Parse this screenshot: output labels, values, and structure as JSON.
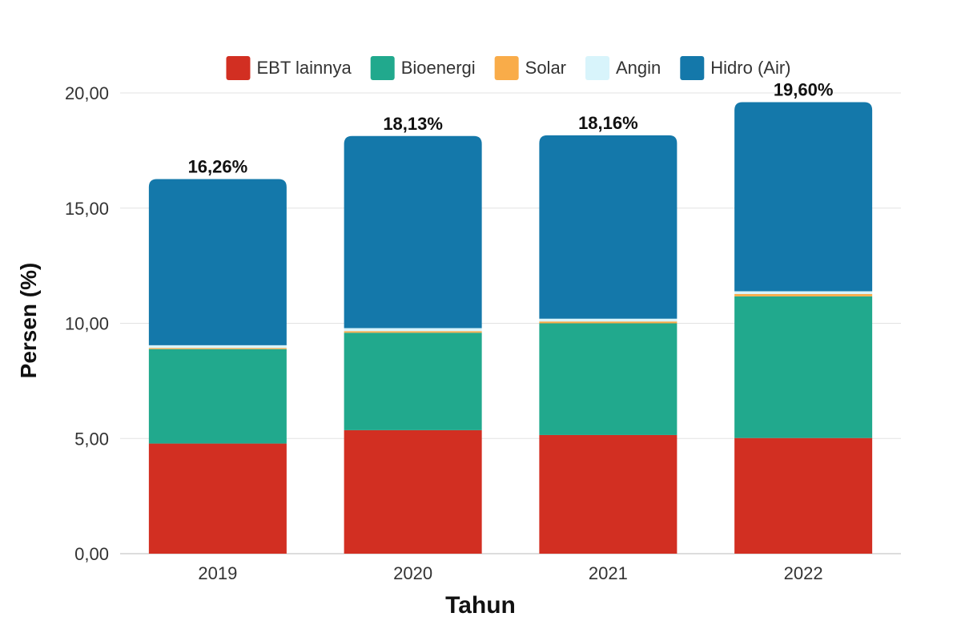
{
  "chart_data": {
    "type": "bar",
    "stacked": true,
    "categories": [
      "2019",
      "2020",
      "2021",
      "2022"
    ],
    "series": [
      {
        "name": "EBT lainnya",
        "color": "#d22f22",
        "values": [
          4.78,
          5.36,
          5.15,
          5.02
        ]
      },
      {
        "name": "Bioenergi",
        "color": "#21a98d",
        "values": [
          4.1,
          4.23,
          4.85,
          6.15
        ]
      },
      {
        "name": "Solar",
        "color": "#f9ac49",
        "values": [
          0.05,
          0.07,
          0.08,
          0.1
        ]
      },
      {
        "name": "Angin",
        "color": "#d8f4fb",
        "values": [
          0.12,
          0.13,
          0.12,
          0.12
        ]
      },
      {
        "name": "Hidro (Air)",
        "color": "#1478aa",
        "values": [
          7.21,
          8.34,
          7.96,
          8.21
        ]
      }
    ],
    "totals_labels": [
      "16,26%",
      "18,13%",
      "18,16%",
      "19,60%"
    ],
    "totals": [
      16.26,
      18.13,
      18.16,
      19.6
    ],
    "ylim": [
      0,
      20
    ],
    "yticks": [
      0,
      5,
      10,
      15,
      20
    ],
    "ytick_labels": [
      "0,00",
      "5,00",
      "10,00",
      "15,00",
      "20,00"
    ],
    "xlabel": "Tahun",
    "ylabel": "Persen (%)",
    "grid": true,
    "legend_position": "top"
  }
}
